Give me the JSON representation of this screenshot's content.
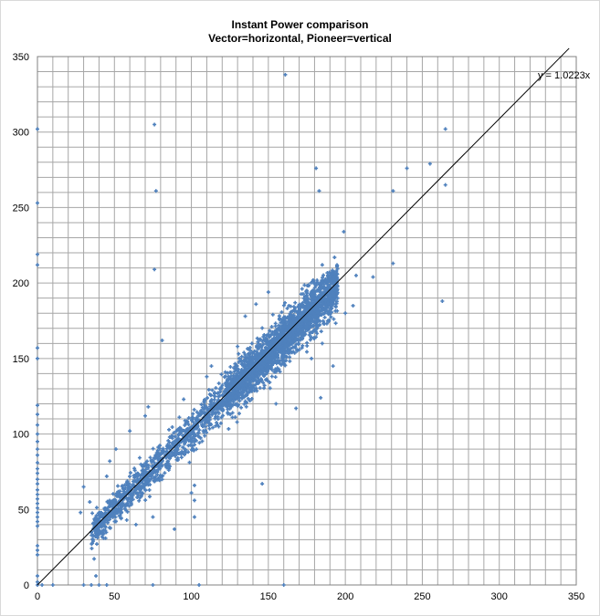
{
  "chart_data": {
    "type": "scatter",
    "title_lines": [
      "Instant Power comparison",
      "Vector=horizontal, Pioneer=vertical"
    ],
    "xlabel": "",
    "ylabel": "",
    "xlim": [
      0,
      350
    ],
    "ylim": [
      0,
      350
    ],
    "x_ticks": [
      0,
      50,
      100,
      150,
      200,
      250,
      300,
      350
    ],
    "y_ticks": [
      0,
      50,
      100,
      150,
      200,
      250,
      300,
      350
    ],
    "grid": true,
    "marker_color": "#4f81bd",
    "trendline": {
      "slope": 1.0223,
      "label": "y = 1.0223x",
      "color": "#000000"
    },
    "cloud_model": {
      "x_range": [
        35,
        195
      ],
      "slope_mean": 1.02,
      "noise_sd": 6,
      "point_count": 3200
    },
    "outliers": [
      [
        0,
        302
      ],
      [
        0,
        253
      ],
      [
        0,
        219
      ],
      [
        0,
        212
      ],
      [
        0,
        157
      ],
      [
        0,
        150
      ],
      [
        0,
        119
      ],
      [
        0,
        113
      ],
      [
        0,
        106
      ],
      [
        0,
        100
      ],
      [
        0,
        95
      ],
      [
        0,
        90
      ],
      [
        0,
        86
      ],
      [
        0,
        81
      ],
      [
        0,
        77
      ],
      [
        0,
        74
      ],
      [
        0,
        70
      ],
      [
        0,
        67
      ],
      [
        0,
        63
      ],
      [
        0,
        60
      ],
      [
        0,
        57
      ],
      [
        0,
        54
      ],
      [
        0,
        51
      ],
      [
        0,
        48
      ],
      [
        0,
        45
      ],
      [
        0,
        42
      ],
      [
        0,
        39
      ],
      [
        0,
        26
      ],
      [
        0,
        23
      ],
      [
        0,
        20
      ],
      [
        0,
        6
      ],
      [
        0,
        2
      ],
      [
        0,
        0
      ],
      [
        3,
        0
      ],
      [
        10,
        0
      ],
      [
        30,
        0
      ],
      [
        35,
        0
      ],
      [
        40,
        0
      ],
      [
        45,
        0
      ],
      [
        75,
        0
      ],
      [
        105,
        0
      ],
      [
        160,
        0
      ],
      [
        38,
        6
      ],
      [
        76,
        305
      ],
      [
        77,
        261
      ],
      [
        76,
        209
      ],
      [
        161,
        338
      ],
      [
        181,
        276
      ],
      [
        183,
        261
      ],
      [
        240,
        276
      ],
      [
        255,
        279
      ],
      [
        231,
        261
      ],
      [
        265,
        302
      ],
      [
        265,
        265
      ],
      [
        231,
        213
      ],
      [
        263,
        188
      ],
      [
        185,
        212
      ],
      [
        199,
        234
      ],
      [
        218,
        204
      ],
      [
        207,
        205
      ],
      [
        193,
        217
      ],
      [
        205,
        185
      ],
      [
        192,
        145
      ],
      [
        184,
        124
      ],
      [
        146,
        67
      ],
      [
        102,
        66
      ],
      [
        100,
        61
      ],
      [
        102,
        56
      ],
      [
        102,
        45
      ],
      [
        81,
        162
      ],
      [
        130,
        158
      ],
      [
        113,
        145
      ],
      [
        138,
        122
      ],
      [
        155,
        120
      ],
      [
        168,
        117
      ],
      [
        89,
        37
      ],
      [
        75,
        45
      ],
      [
        64,
        40
      ],
      [
        58,
        43
      ],
      [
        30,
        65
      ],
      [
        34,
        55
      ],
      [
        28,
        48
      ],
      [
        40,
        42
      ],
      [
        43,
        31
      ],
      [
        45,
        72
      ],
      [
        47,
        82
      ],
      [
        51,
        90
      ],
      [
        60,
        102
      ],
      [
        70,
        112
      ],
      [
        72,
        118
      ],
      [
        95,
        123
      ],
      [
        110,
        138
      ],
      [
        122,
        141
      ],
      [
        135,
        178
      ],
      [
        142,
        186
      ],
      [
        150,
        194
      ],
      [
        175,
        195
      ],
      [
        180,
        200
      ],
      [
        190,
        192
      ],
      [
        195,
        190
      ],
      [
        200,
        180
      ],
      [
        185,
        160
      ],
      [
        178,
        150
      ]
    ]
  }
}
